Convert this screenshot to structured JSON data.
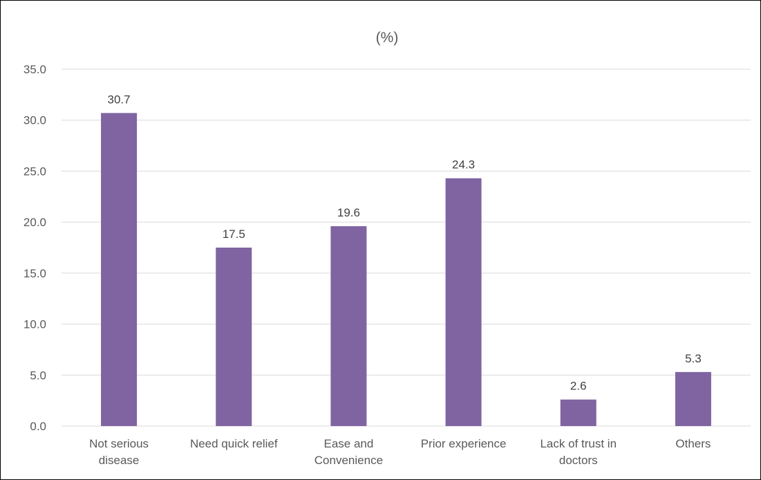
{
  "chart_data": {
    "type": "bar",
    "title": "(%)",
    "xlabel": "",
    "ylabel": "",
    "categories": [
      [
        "Not serious",
        "disease"
      ],
      [
        "Need quick relief"
      ],
      [
        "Ease and",
        "Convenience"
      ],
      [
        "Prior experience"
      ],
      [
        "Lack of trust in",
        "doctors"
      ],
      [
        "Others"
      ]
    ],
    "values": [
      30.7,
      17.5,
      19.6,
      24.3,
      2.6,
      5.3
    ],
    "data_labels": [
      "30.7",
      "17.5",
      "19.6",
      "24.3",
      "2.6",
      "5.3"
    ],
    "ylim": [
      0,
      35
    ],
    "yticks": [
      "0.0",
      "5.0",
      "10.0",
      "15.0",
      "20.0",
      "25.0",
      "30.0",
      "35.0"
    ],
    "ytick_values": [
      0,
      5,
      10,
      15,
      20,
      25,
      30,
      35
    ],
    "grid": true,
    "legend": "none",
    "bar_color": "#8064A2",
    "grid_color": "#D9D9D9"
  }
}
